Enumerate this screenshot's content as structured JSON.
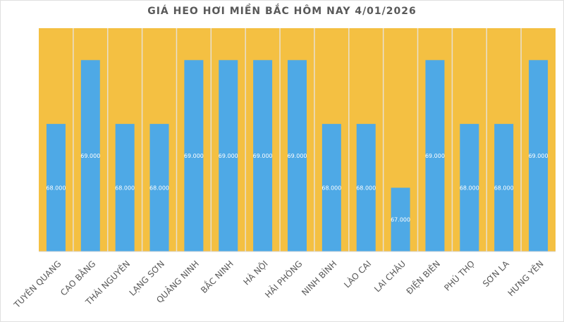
{
  "chart_data": {
    "type": "bar",
    "title": "GIÁ HEO HƠI MIỀN BẮC HÔM NAY 4/01/2026",
    "categories": [
      "TUYÊN QUANG",
      "CAO BẰNG",
      "THÁI NGUYÊN",
      "LẠNG SƠN",
      "QUẢNG NINH",
      "BẮC NINH",
      "HÀ NỘI",
      "HẢI PHÒNG",
      "NINH BÌNH",
      "LÀO CAI",
      "LAI CHÂU",
      "ĐIỆN BIÊN",
      "PHÚ THỌ",
      "SƠN LA",
      "HƯNG YÊN"
    ],
    "values": [
      68000,
      69000,
      68000,
      68000,
      69000,
      69000,
      69000,
      69000,
      68000,
      68000,
      67000,
      69000,
      68000,
      68000,
      69000
    ],
    "data_labels": [
      "68.000",
      "69.000",
      "68.000",
      "68.000",
      "69.000",
      "69.000",
      "69.000",
      "69.000",
      "68.000",
      "68.000",
      "67.000",
      "69.000",
      "68.000",
      "68.000",
      "69.000"
    ],
    "ylim": [
      66000,
      69500
    ],
    "xlabel": "",
    "ylabel": "",
    "grid": false,
    "colors": {
      "bar": "#4EA9E6",
      "background_band": "#F4C042",
      "separator": "#E8E0D0",
      "label": "#595959"
    }
  }
}
